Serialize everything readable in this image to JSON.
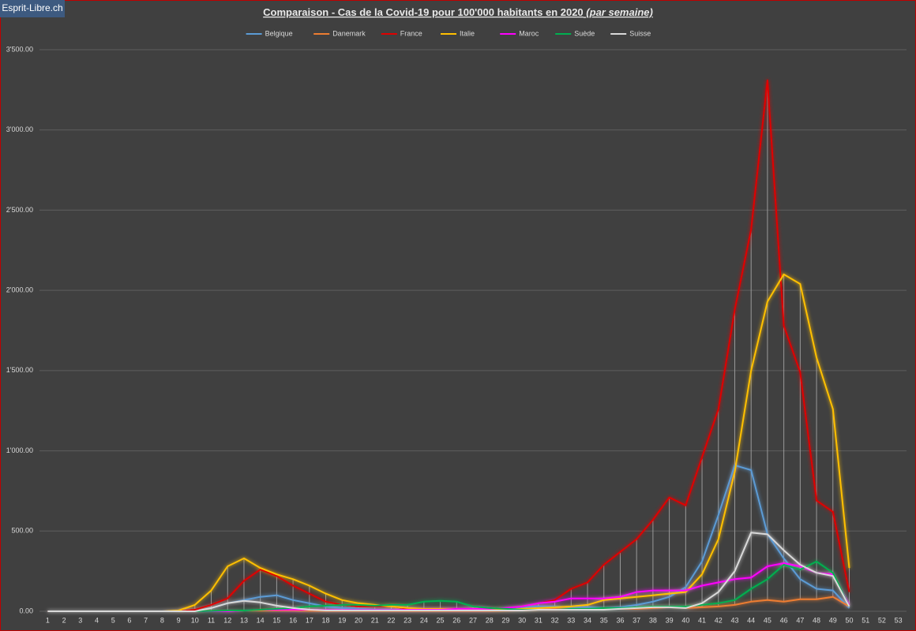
{
  "brand": "Esprit-Libre.ch",
  "chart_data": {
    "type": "line",
    "title": "Comparaison - Cas de la Covid-19 pour 100'000  habitants en 2020",
    "subtitle": "(par semaine)",
    "categories": [
      "1",
      "2",
      "3",
      "4",
      "5",
      "6",
      "7",
      "8",
      "9",
      "10",
      "11",
      "12",
      "13",
      "14",
      "15",
      "16",
      "17",
      "18",
      "19",
      "20",
      "21",
      "22",
      "23",
      "24",
      "25",
      "26",
      "27",
      "28",
      "29",
      "30",
      "31",
      "32",
      "33",
      "34",
      "35",
      "36",
      "37",
      "38",
      "39",
      "40",
      "41",
      "42",
      "43",
      "44",
      "45",
      "46",
      "47",
      "48",
      "49",
      "50",
      "51",
      "52",
      "53"
    ],
    "ylim": [
      0,
      3500
    ],
    "yticks": [
      {
        "value": 0,
        "label": "0.00"
      },
      {
        "value": 500,
        "label": "500.00"
      },
      {
        "value": 1000,
        "label": "1'000.00"
      },
      {
        "value": 1500,
        "label": "1'500.00"
      },
      {
        "value": 2000,
        "label": "2'000.00"
      },
      {
        "value": 2500,
        "label": "2'500.00"
      },
      {
        "value": 3000,
        "label": "3'000.00"
      },
      {
        "value": 3500,
        "label": "3'500.00"
      }
    ],
    "grid": true,
    "legend": "top",
    "series": [
      {
        "name": "Belgique",
        "color": "#5b9bd5",
        "values": [
          0,
          0,
          0,
          0,
          0,
          0,
          0,
          0,
          0,
          0,
          20,
          50,
          70,
          90,
          100,
          70,
          50,
          30,
          20,
          15,
          10,
          10,
          10,
          10,
          10,
          10,
          10,
          15,
          20,
          25,
          30,
          30,
          25,
          25,
          20,
          25,
          40,
          60,
          90,
          150,
          310,
          600,
          910,
          880,
          480,
          330,
          200,
          140,
          130,
          20,
          null,
          null,
          null
        ]
      },
      {
        "name": "Danemark",
        "color": "#ed7d31",
        "values": [
          0,
          0,
          0,
          0,
          0,
          0,
          0,
          0,
          0,
          0,
          2,
          5,
          5,
          5,
          5,
          5,
          3,
          2,
          2,
          2,
          2,
          2,
          2,
          2,
          2,
          2,
          2,
          2,
          3,
          5,
          10,
          15,
          15,
          15,
          15,
          15,
          15,
          20,
          25,
          20,
          25,
          30,
          40,
          60,
          70,
          60,
          75,
          75,
          90,
          30,
          null,
          null,
          null
        ]
      },
      {
        "name": "France",
        "color": "#e00000",
        "values": [
          0,
          0,
          0,
          0,
          0,
          0,
          0,
          0,
          0,
          10,
          40,
          80,
          190,
          260,
          220,
          160,
          110,
          60,
          40,
          30,
          30,
          30,
          15,
          15,
          15,
          15,
          15,
          15,
          20,
          30,
          50,
          70,
          140,
          180,
          290,
          370,
          450,
          570,
          710,
          660,
          960,
          1260,
          1880,
          2380,
          3310,
          1780,
          1490,
          690,
          620,
          120,
          null,
          null,
          null
        ]
      },
      {
        "name": "Italie",
        "color": "#ffc000",
        "values": [
          0,
          0,
          0,
          0,
          0,
          0,
          0,
          0,
          5,
          40,
          130,
          280,
          330,
          270,
          230,
          200,
          160,
          110,
          70,
          50,
          40,
          30,
          20,
          15,
          15,
          15,
          10,
          10,
          10,
          15,
          20,
          25,
          30,
          40,
          70,
          80,
          90,
          100,
          110,
          120,
          230,
          450,
          870,
          1500,
          1930,
          2100,
          2040,
          1580,
          1260,
          270,
          null,
          null,
          null
        ]
      },
      {
        "name": "Maroc",
        "color": "#ff00ff",
        "values": [
          0,
          0,
          0,
          0,
          0,
          0,
          0,
          0,
          0,
          0,
          0,
          0,
          5,
          10,
          10,
          10,
          10,
          8,
          8,
          8,
          8,
          8,
          10,
          10,
          10,
          15,
          15,
          15,
          20,
          30,
          50,
          60,
          80,
          80,
          80,
          90,
          120,
          130,
          130,
          130,
          160,
          180,
          200,
          210,
          280,
          300,
          280,
          240,
          230,
          40,
          null,
          null,
          null
        ]
      },
      {
        "name": "Suède",
        "color": "#00b050",
        "values": [
          0,
          0,
          0,
          0,
          0,
          0,
          0,
          0,
          0,
          0,
          2,
          5,
          5,
          10,
          15,
          20,
          30,
          35,
          40,
          40,
          35,
          40,
          40,
          60,
          65,
          60,
          30,
          20,
          15,
          10,
          10,
          10,
          15,
          15,
          20,
          20,
          25,
          30,
          30,
          30,
          40,
          50,
          70,
          140,
          200,
          290,
          260,
          310,
          240,
          30,
          null,
          null,
          null
        ]
      },
      {
        "name": "Suisse",
        "color": "#d9d9d9",
        "values": [
          0,
          0,
          0,
          0,
          0,
          0,
          0,
          0,
          0,
          0,
          20,
          50,
          65,
          55,
          35,
          20,
          10,
          5,
          5,
          5,
          5,
          5,
          5,
          5,
          5,
          5,
          5,
          5,
          5,
          5,
          10,
          10,
          10,
          10,
          10,
          15,
          20,
          25,
          25,
          20,
          50,
          120,
          250,
          490,
          480,
          380,
          290,
          240,
          220,
          30,
          null,
          null,
          null
        ]
      }
    ]
  }
}
